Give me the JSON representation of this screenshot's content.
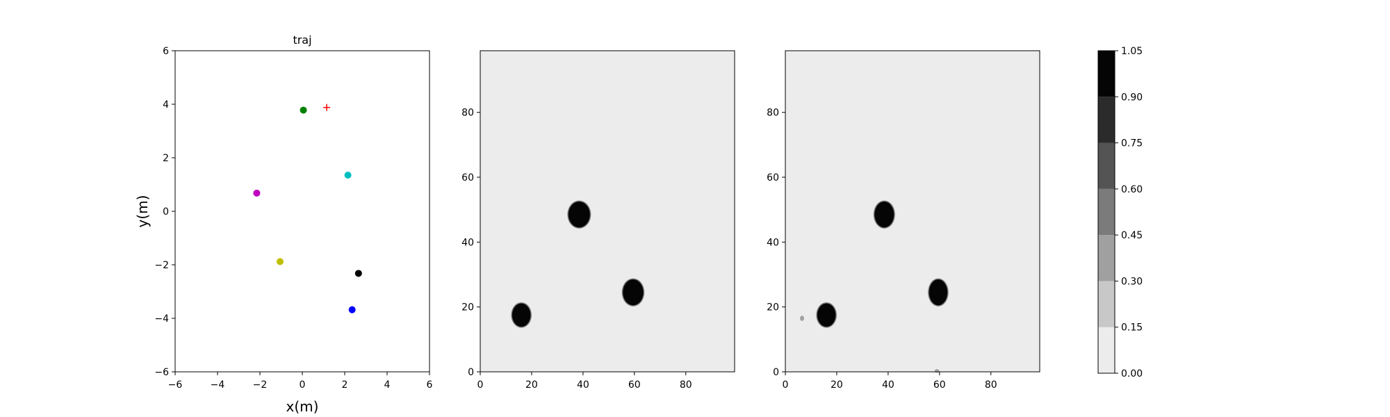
{
  "chart_data": [
    {
      "type": "scatter",
      "title": "traj",
      "xlabel": "x(m)",
      "ylabel": "y(m)",
      "xlim": [
        -6,
        6
      ],
      "ylim": [
        -6,
        6
      ],
      "xticks": [
        -6,
        -4,
        -2,
        0,
        2,
        4,
        6
      ],
      "yticks": [
        -6,
        -4,
        -2,
        0,
        2,
        4,
        6
      ],
      "grid": false,
      "points": [
        {
          "x": 0.05,
          "y": 3.78,
          "color": "#008000",
          "marker": "circle"
        },
        {
          "x": 2.15,
          "y": 1.35,
          "color": "#00bfbf",
          "marker": "circle"
        },
        {
          "x": -2.15,
          "y": 0.68,
          "color": "#bf00bf",
          "marker": "circle"
        },
        {
          "x": -1.05,
          "y": -1.88,
          "color": "#bfbf00",
          "marker": "circle"
        },
        {
          "x": 2.65,
          "y": -2.32,
          "color": "#000000",
          "marker": "circle"
        },
        {
          "x": 2.35,
          "y": -3.68,
          "color": "#0000ff",
          "marker": "circle"
        },
        {
          "x": 1.15,
          "y": 3.88,
          "color": "#ff0000",
          "marker": "plus"
        }
      ]
    },
    {
      "type": "heatmap",
      "title": "",
      "xlim": [
        0,
        99
      ],
      "ylim": [
        0,
        99
      ],
      "xticks": [
        0,
        20,
        40,
        60,
        80
      ],
      "yticks": [
        0,
        20,
        40,
        60,
        80
      ],
      "background_value": 0.05,
      "blobs": [
        {
          "cx": 38.5,
          "cy": 48.5,
          "rx": 4.2,
          "ry": 4.0,
          "value": 1.0
        },
        {
          "cx": 16.0,
          "cy": 17.5,
          "rx": 3.6,
          "ry": 3.6,
          "value": 1.0
        },
        {
          "cx": 59.5,
          "cy": 24.5,
          "rx": 4.0,
          "ry": 4.0,
          "value": 1.0
        }
      ]
    },
    {
      "type": "heatmap",
      "title": "",
      "xlim": [
        0,
        99
      ],
      "ylim": [
        0,
        99
      ],
      "xticks": [
        0,
        20,
        40,
        60,
        80
      ],
      "yticks": [
        0,
        20,
        40,
        60,
        80
      ],
      "background_value": 0.05,
      "blobs": [
        {
          "cx": 38.5,
          "cy": 48.5,
          "rx": 3.8,
          "ry": 4.0,
          "value": 1.0
        },
        {
          "cx": 16.0,
          "cy": 17.5,
          "rx": 3.6,
          "ry": 3.6,
          "value": 1.0
        },
        {
          "cx": 59.5,
          "cy": 24.5,
          "rx": 3.6,
          "ry": 4.0,
          "value": 1.0
        },
        {
          "cx": 6.5,
          "cy": 16.5,
          "rx": 0.8,
          "ry": 0.8,
          "value": 0.3
        },
        {
          "cx": 59.0,
          "cy": 0.3,
          "rx": 0.9,
          "ry": 0.5,
          "value": 0.3
        }
      ]
    },
    {
      "type": "colorbar",
      "ticks": [
        0.0,
        0.15,
        0.3,
        0.45,
        0.6,
        0.75,
        0.9,
        1.05
      ],
      "tick_labels": [
        "0.00",
        "0.15",
        "0.30",
        "0.45",
        "0.60",
        "0.75",
        "0.90",
        "1.05"
      ],
      "level_colors": [
        "#ececec",
        "#c8c8c8",
        "#a0a0a0",
        "#7b7b7b",
        "#545454",
        "#2b2b2b",
        "#050505"
      ]
    }
  ]
}
